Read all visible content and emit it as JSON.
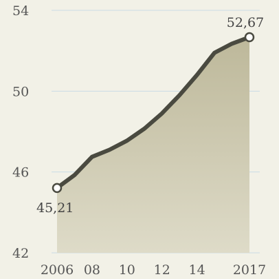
{
  "chart_data": {
    "type": "area",
    "title": "",
    "xlabel": "",
    "ylabel": "",
    "x": [
      2006,
      2007,
      2008,
      2009,
      2010,
      2011,
      2012,
      2013,
      2014,
      2015,
      2016,
      2017
    ],
    "series": [
      {
        "values": [
          45.21,
          45.85,
          46.75,
          47.1,
          47.55,
          48.15,
          48.9,
          49.8,
          50.8,
          51.9,
          52.35,
          52.67
        ]
      }
    ],
    "ylim": [
      42,
      54
    ],
    "y_ticks": [
      "42",
      "46",
      "50",
      "54"
    ],
    "y_tick_values": [
      42,
      46,
      50,
      54
    ],
    "x_ticks": [
      "2006",
      "08",
      "10",
      "12",
      "14",
      "2017"
    ],
    "x_tick_values": [
      2006,
      2008,
      2010,
      2012,
      2014,
      2017
    ],
    "annotations": [
      {
        "x": 2006,
        "y": 45.21,
        "label": "45,21",
        "position": "below"
      },
      {
        "x": 2017,
        "y": 52.67,
        "label": "52,67",
        "position": "above"
      }
    ],
    "grid": true,
    "colors": {
      "background": "#f2f1e7",
      "area": "#c7c3a5",
      "line": "#4a4a40",
      "grid": "#c9dbe6",
      "marker_fill": "#ffffff"
    }
  }
}
